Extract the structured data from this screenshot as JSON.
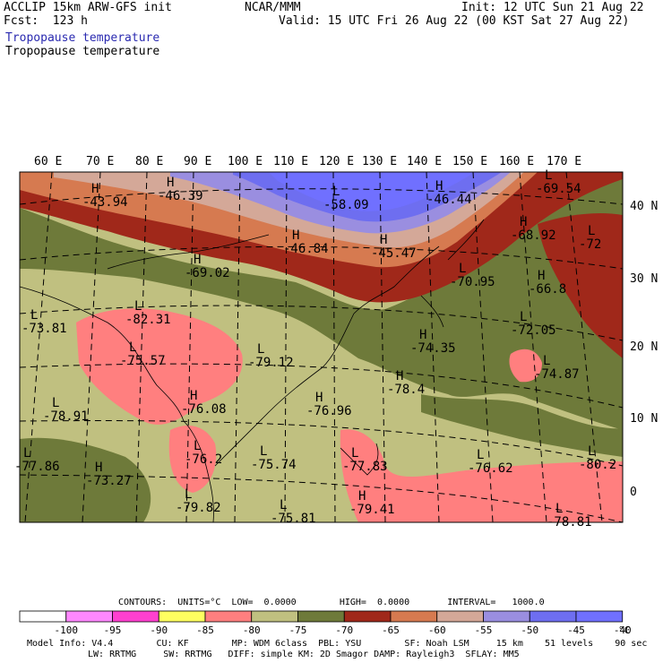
{
  "header": {
    "model_title": "ACCLIP 15km ARW-GFS init",
    "forecast": "Fcst:  123 h",
    "center": "NCAR/MMM",
    "init": "Init: 12 UTC Sun 21 Aug 22",
    "valid": "Valid: 15 UTC Fri 26 Aug 22 (00 KST Sat 27 Aug 22)",
    "field_title_1": "Tropopause temperature",
    "field_title_2": "Tropopause temperature"
  },
  "colors": {
    "field_title_1": "#2a2ab0",
    "level_-95": "#ff88ff",
    "level_-90": "#ff40d0",
    "level_-85": "#ffff60",
    "level_-80": "#ff7f7f",
    "level_-75": "#c0c080",
    "level_-70": "#6e7a3a",
    "level_-65": "#a0281a",
    "level_-60": "#d67a50",
    "level_-55": "#d4a898",
    "level_-50": "#9a8ee0",
    "level_-45": "#6e6ef0",
    "level_-40": "#7070ff"
  },
  "map": {
    "lon_labels": [
      "60 E",
      "70 E",
      "80 E",
      "90 E",
      "100 E",
      "110 E",
      "120 E",
      "130 E",
      "140 E",
      "150 E",
      "160 E",
      "170 E"
    ],
    "lat_labels": [
      "40 N",
      "30 N",
      "20 N",
      "10 N",
      "0"
    ],
    "extrema": [
      {
        "type": "H",
        "value": "-43.94"
      },
      {
        "type": "H",
        "value": "-46.39"
      },
      {
        "type": "L",
        "value": "-58.09"
      },
      {
        "type": "H",
        "value": "-46.44"
      },
      {
        "type": "L",
        "value": "-69.54"
      },
      {
        "type": "H",
        "value": "-68.92"
      },
      {
        "type": "L",
        "value": "-72"
      },
      {
        "type": "H",
        "value": "-46.84"
      },
      {
        "type": "H",
        "value": "-45.47"
      },
      {
        "type": "H",
        "value": "-69.02"
      },
      {
        "type": "L",
        "value": "-70.95"
      },
      {
        "type": "H",
        "value": "-66.8"
      },
      {
        "type": "L",
        "value": "-82.31"
      },
      {
        "type": "L",
        "value": "-73.81"
      },
      {
        "type": "H",
        "value": "-74.35"
      },
      {
        "type": "L",
        "value": "-72.05"
      },
      {
        "type": "L",
        "value": "-75.57"
      },
      {
        "type": "L",
        "value": "-79.12"
      },
      {
        "type": "L",
        "value": "-74.87"
      },
      {
        "type": "H",
        "value": "-78.4"
      },
      {
        "type": "L",
        "value": "-78.91"
      },
      {
        "type": "H",
        "value": "-76.08"
      },
      {
        "type": "H",
        "value": "-76.96"
      },
      {
        "type": "L",
        "value": "-76.2"
      },
      {
        "type": "L",
        "value": "-75.74"
      },
      {
        "type": "L",
        "value": "-77.83"
      },
      {
        "type": "L",
        "value": "-76.62"
      },
      {
        "type": "L",
        "value": "-80.2"
      },
      {
        "type": "L",
        "value": "-77.86"
      },
      {
        "type": "H",
        "value": "-73.27"
      },
      {
        "type": "L",
        "value": "-79.82"
      },
      {
        "type": "L",
        "value": "-75.81"
      },
      {
        "type": "H",
        "value": "-79.41"
      },
      {
        "type": "L",
        "value": "-78.81"
      }
    ]
  },
  "contours": {
    "units_text": "CONTOURS:  UNITS=°C  LOW=  0.0000        HIGH=  0.0000       INTERVAL=   1000.0"
  },
  "colorbar": {
    "labels": [
      "-100",
      "-95",
      "-90",
      "-85",
      "-80",
      "-75",
      "-70",
      "-65",
      "-60",
      "-55",
      "-50",
      "-45",
      "-40"
    ],
    "unit": "°C"
  },
  "footer": {
    "line1": "Model Info: V4.4        CU: KF        MP: WDM 6class  PBL: YSU        SF: Noah LSM     15 km    51 levels    90 sec",
    "line2": "LW: RRTMG     SW: RRTMG   DIFF: simple KM: 2D Smagor DAMP: Rayleigh3  SFLAY: MM5"
  }
}
